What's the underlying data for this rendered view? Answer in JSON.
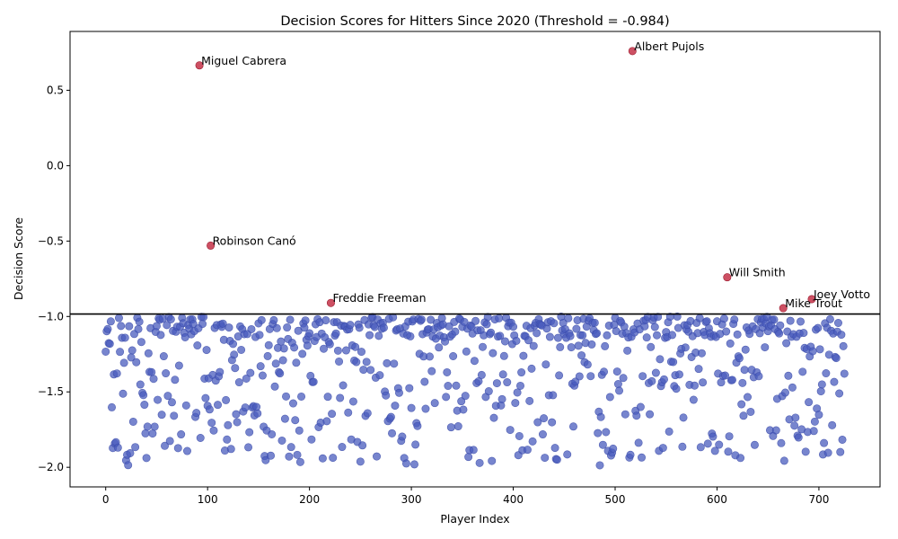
{
  "chart_data": {
    "type": "scatter",
    "title": "Decision Scores for Hitters Since 2020 (Threshold = -0.984)",
    "xlabel": "Player Index",
    "ylabel": "Decision Score",
    "xlim": [
      -35,
      760
    ],
    "ylim": [
      -2.13,
      0.89
    ],
    "xticks": [
      0,
      100,
      200,
      300,
      400,
      500,
      600,
      700
    ],
    "xtick_labels": [
      "0",
      "100",
      "200",
      "300",
      "400",
      "500",
      "600",
      "700"
    ],
    "yticks": [
      -2.0,
      -1.5,
      -1.0,
      -0.5,
      0.0,
      0.5
    ],
    "ytick_labels": [
      "−2.0",
      "−1.5",
      "−1.0",
      "−0.5",
      "0.0",
      "0.5"
    ],
    "threshold": -0.984,
    "grid": false,
    "colors": {
      "normal": "#4a5cbd",
      "outlier": "#c0243c",
      "threshold_line": "#000000"
    },
    "n_players": 726,
    "normal_point_seed": 20201984,
    "outliers": [
      {
        "name": "Miguel Cabrera",
        "x": 92,
        "y": 0.665
      },
      {
        "name": "Albert Pujols",
        "x": 517,
        "y": 0.76
      },
      {
        "name": "Robinson Canó",
        "x": 103,
        "y": -0.53
      },
      {
        "name": "Freddie Freeman",
        "x": 221,
        "y": -0.91
      },
      {
        "name": "Will Smith",
        "x": 610,
        "y": -0.74
      },
      {
        "name": "Joey Votto",
        "x": 693,
        "y": -0.885
      },
      {
        "name": "Mike Trout",
        "x": 665,
        "y": -0.945
      }
    ]
  }
}
